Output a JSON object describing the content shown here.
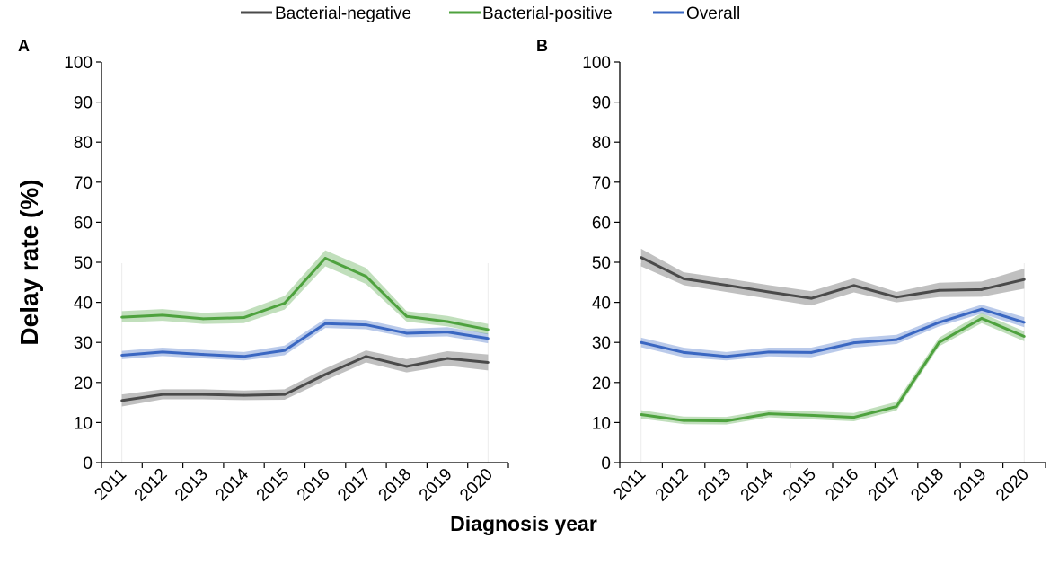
{
  "colors": {
    "Bacterial-negative": "#4a4a4a",
    "Bacterial-positive": "#4ea23e",
    "Overall": "#3a67c2"
  },
  "legend": [
    "Bacterial-negative",
    "Bacterial-positive",
    "Overall"
  ],
  "ylabel": "Delay rate (%)",
  "xlabel": "Diagnosis year",
  "chart_data": [
    {
      "type": "line",
      "panel": "A",
      "categories": [
        "2011",
        "2012",
        "2013",
        "2014",
        "2015",
        "2016",
        "2017",
        "2018",
        "2019",
        "2020"
      ],
      "ylim": [
        0,
        100
      ],
      "yticks": [
        0,
        10,
        20,
        30,
        40,
        50,
        60,
        70,
        80,
        90,
        100
      ],
      "series": [
        {
          "name": "Bacterial-negative",
          "values": [
            15.5,
            17.0,
            17.0,
            16.8,
            17.0,
            22.0,
            26.5,
            24.0,
            26.0,
            25.0
          ],
          "lower": [
            14.0,
            15.8,
            15.8,
            15.6,
            15.7,
            20.5,
            25.0,
            22.5,
            24.2,
            23.0
          ],
          "upper": [
            17.0,
            18.3,
            18.3,
            18.0,
            18.3,
            23.5,
            28.0,
            25.8,
            27.8,
            27.0
          ]
        },
        {
          "name": "Bacterial-positive",
          "values": [
            36.3,
            36.8,
            35.9,
            36.2,
            39.8,
            51.0,
            46.5,
            36.5,
            35.2,
            33.2
          ],
          "lower": [
            35.0,
            35.4,
            34.6,
            34.8,
            38.2,
            49.0,
            44.6,
            35.2,
            34.0,
            32.0
          ],
          "upper": [
            37.8,
            38.3,
            37.4,
            37.8,
            41.6,
            53.0,
            48.6,
            37.8,
            36.6,
            34.6
          ]
        },
        {
          "name": "Overall",
          "values": [
            26.8,
            27.6,
            27.0,
            26.5,
            28.0,
            34.7,
            34.4,
            32.3,
            32.6,
            31.0
          ],
          "lower": [
            25.8,
            26.6,
            26.0,
            25.5,
            26.8,
            33.6,
            33.3,
            31.3,
            31.5,
            29.8
          ],
          "upper": [
            27.9,
            28.7,
            28.1,
            27.6,
            29.2,
            35.9,
            35.6,
            33.4,
            33.8,
            32.2
          ]
        }
      ]
    },
    {
      "type": "line",
      "panel": "B",
      "categories": [
        "2011",
        "2012",
        "2013",
        "2014",
        "2015",
        "2016",
        "2017",
        "2018",
        "2019",
        "2020"
      ],
      "ylim": [
        0,
        100
      ],
      "yticks": [
        0,
        10,
        20,
        30,
        40,
        50,
        60,
        70,
        80,
        90,
        100
      ],
      "series": [
        {
          "name": "Bacterial-negative",
          "values": [
            51.2,
            45.9,
            44.3,
            42.6,
            41.0,
            44.2,
            41.3,
            43.0,
            43.2,
            45.7
          ],
          "lower": [
            49.0,
            44.3,
            42.6,
            40.9,
            39.2,
            42.5,
            40.0,
            41.3,
            41.4,
            43.4
          ],
          "upper": [
            53.4,
            47.5,
            46.0,
            44.3,
            42.8,
            46.0,
            42.6,
            44.9,
            45.2,
            48.4
          ]
        },
        {
          "name": "Bacterial-positive",
          "values": [
            12.0,
            10.5,
            10.4,
            12.2,
            11.8,
            11.3,
            14.0,
            30.0,
            36.0,
            31.5
          ],
          "lower": [
            11.0,
            9.6,
            9.5,
            11.3,
            10.8,
            10.3,
            13.0,
            29.0,
            34.8,
            30.3
          ],
          "upper": [
            13.1,
            11.5,
            11.4,
            13.2,
            12.8,
            12.4,
            15.2,
            31.2,
            37.3,
            32.8
          ]
        },
        {
          "name": "Overall",
          "values": [
            30.0,
            27.5,
            26.5,
            27.6,
            27.5,
            29.9,
            30.7,
            35.0,
            38.3,
            35.0
          ],
          "lower": [
            28.8,
            26.3,
            25.5,
            26.5,
            26.3,
            28.7,
            29.6,
            34.0,
            37.2,
            33.8
          ],
          "upper": [
            31.2,
            28.7,
            27.6,
            28.7,
            28.7,
            31.1,
            31.9,
            36.1,
            39.4,
            36.3
          ]
        }
      ]
    }
  ]
}
